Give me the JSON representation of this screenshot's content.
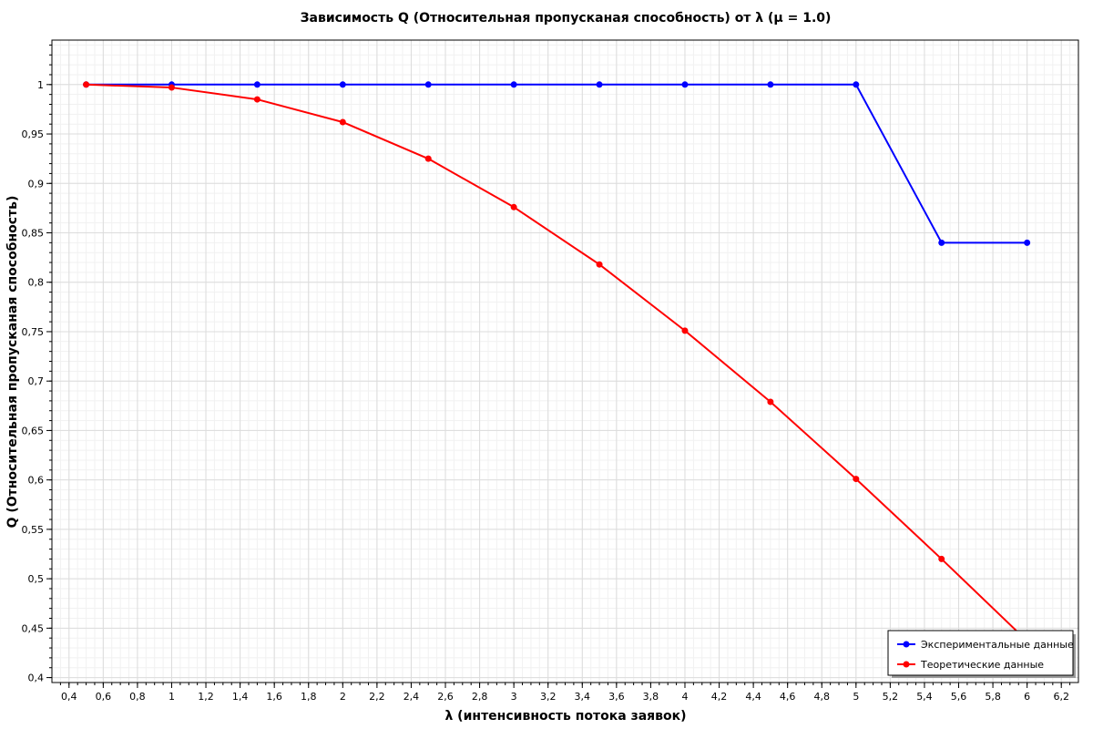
{
  "chart_data": {
    "type": "line",
    "title": "Зависимость Q (Относительная пропусканая способность) от λ (μ = 1.0)",
    "xlabel": "λ (интенсивность потока заявок)",
    "ylabel": "Q (Относительная пропусканая способность)",
    "xlim": [
      0.3,
      6.3
    ],
    "ylim": [
      0.395,
      1.045
    ],
    "x_ticks": [
      "0,4",
      "0,6",
      "0,8",
      "1",
      "1,2",
      "1,4",
      "1,6",
      "1,8",
      "2",
      "2,2",
      "2,4",
      "2,6",
      "2,8",
      "3",
      "3,2",
      "3,4",
      "3,6",
      "3,8",
      "4",
      "4,2",
      "4,4",
      "4,6",
      "4,8",
      "5",
      "5,2",
      "5,4",
      "5,6",
      "5,8",
      "6",
      "6,2"
    ],
    "y_ticks": [
      "0,4",
      "0,45",
      "0,5",
      "0,55",
      "0,6",
      "0,65",
      "0,7",
      "0,75",
      "0,8",
      "0,85",
      "0,9",
      "0,95",
      "1"
    ],
    "grid": true,
    "legend_position": "bottom-right",
    "x": [
      0.5,
      1.0,
      1.5,
      2.0,
      2.5,
      3.0,
      3.5,
      4.0,
      4.5,
      5.0,
      5.5,
      6.0
    ],
    "series": [
      {
        "name": "Экспериментальные данные",
        "color": "#0000ff",
        "values": [
          1,
          1,
          1,
          1,
          1,
          1,
          1,
          1,
          1,
          1,
          0.84,
          0.84
        ]
      },
      {
        "name": "Теоретические данные",
        "color": "#ff0000",
        "values": [
          1.0,
          0.997,
          0.985,
          0.962,
          0.925,
          0.876,
          0.818,
          0.751,
          0.679,
          0.601,
          0.52,
          0.437
        ]
      }
    ]
  }
}
